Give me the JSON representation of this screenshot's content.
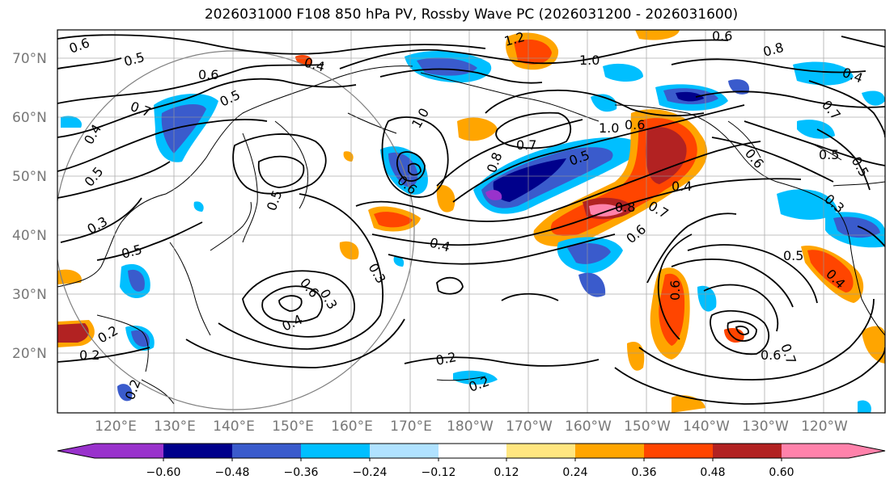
{
  "title": "2026031000 F108 850 hPa PV, Rossby Wave PC (2026031200 - 2026031600)",
  "lat_labels": [
    "70°N",
    "60°N",
    "50°N",
    "40°N",
    "30°N",
    "20°N"
  ],
  "lon_labels": [
    "120°E",
    "130°E",
    "140°E",
    "150°E",
    "160°E",
    "170°E",
    "180°W",
    "170°W",
    "160°W",
    "150°W",
    "140°W",
    "130°W",
    "120°W"
  ],
  "colorbar": {
    "colors": [
      "#9932CC",
      "#00008B",
      "#3A5BCC",
      "#00BFFF",
      "#B0E2FF",
      "#FFFFFF",
      "#FFE680",
      "#FFA500",
      "#FF4500",
      "#B22222",
      "#FF82AB"
    ],
    "tick_labels": [
      "−0.60",
      "−0.48",
      "−0.36",
      "−0.24",
      "−0.12",
      "0.12",
      "0.24",
      "0.36",
      "0.48",
      "0.60"
    ]
  },
  "contour_labels": [
    "0.6",
    "0.5",
    "0.4",
    "0.6",
    "0.5",
    "0.7",
    "0.4",
    "0.5",
    "1.2",
    "1.0",
    "0.6",
    "0.8",
    "1.0",
    "0.7",
    "0.8",
    "0.5",
    "1.0",
    "0.6",
    "0.6",
    "0.4",
    "0.7",
    "0.8",
    "0.6",
    "0.4",
    "0.5",
    "0.3",
    "0.6",
    "0.4",
    "0.3",
    "0.2",
    "0.2",
    "0.2",
    "0.6",
    "0.7",
    "0.5",
    "0.6",
    "0.7",
    "0.5",
    "0.5",
    "0.3",
    "0.4",
    "0.6",
    "0.2",
    "0.2",
    "0.3",
    "0.5",
    "0.4"
  ],
  "colors": {
    "grid": "#999999",
    "contour": "#000000",
    "coast": "#000000",
    "circle": "#808080"
  }
}
